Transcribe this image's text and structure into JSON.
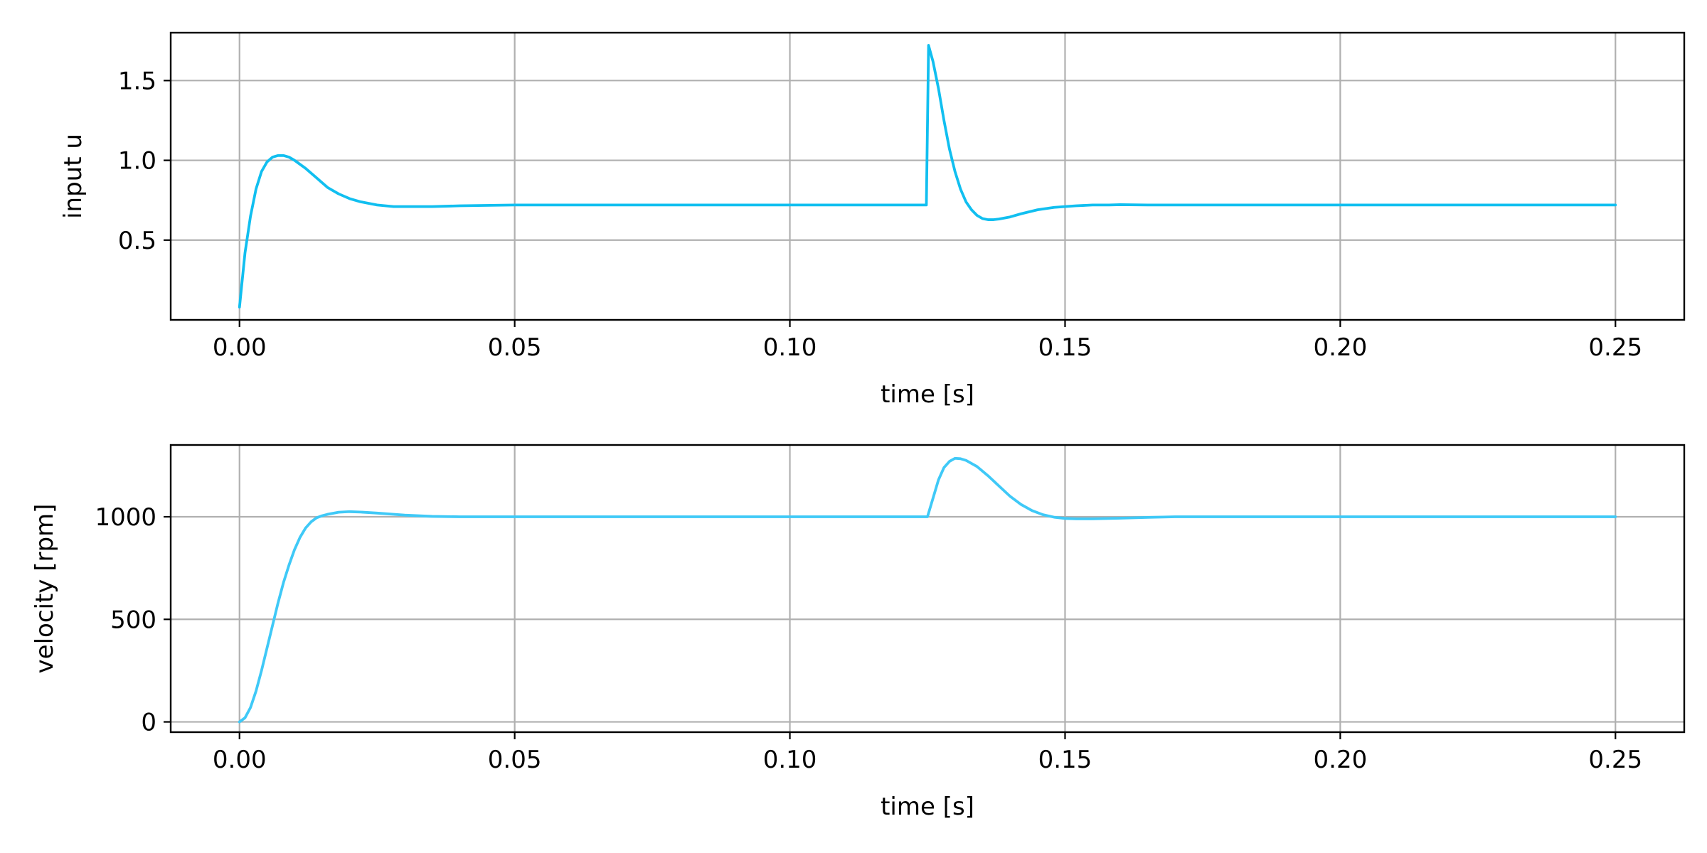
{
  "chart_data": [
    {
      "type": "line",
      "title": "",
      "xlabel": "time [s]",
      "ylabel": "input u",
      "xlim": [
        -0.0125,
        0.2625
      ],
      "ylim": [
        0.0,
        1.8
      ],
      "xticks": [
        0.0,
        0.05,
        0.1,
        0.15,
        0.2,
        0.25
      ],
      "xtick_labels": [
        "0.00",
        "0.05",
        "0.10",
        "0.15",
        "0.20",
        "0.25"
      ],
      "yticks": [
        0.5,
        1.0,
        1.5
      ],
      "ytick_labels": [
        "0.5",
        "1.0",
        "1.5"
      ],
      "grid": true,
      "color": "#11bff0",
      "series": [
        {
          "x": [
            0.0,
            0.001,
            0.002,
            0.003,
            0.004,
            0.005,
            0.006,
            0.007,
            0.008,
            0.009,
            0.01,
            0.012,
            0.014,
            0.016,
            0.018,
            0.02,
            0.022,
            0.025,
            0.028,
            0.03,
            0.035,
            0.04,
            0.05,
            0.06,
            0.08,
            0.1,
            0.12,
            0.1248,
            0.1252,
            0.126,
            0.127,
            0.128,
            0.129,
            0.13,
            0.131,
            0.132,
            0.133,
            0.134,
            0.135,
            0.136,
            0.137,
            0.138,
            0.14,
            0.142,
            0.145,
            0.148,
            0.15,
            0.152,
            0.155,
            0.158,
            0.16,
            0.165,
            0.17,
            0.18,
            0.2,
            0.22,
            0.25
          ],
          "y": [
            0.08,
            0.42,
            0.65,
            0.82,
            0.93,
            0.99,
            1.02,
            1.03,
            1.03,
            1.02,
            1.0,
            0.95,
            0.89,
            0.83,
            0.79,
            0.76,
            0.74,
            0.72,
            0.71,
            0.71,
            0.71,
            0.715,
            0.72,
            0.72,
            0.72,
            0.72,
            0.72,
            0.72,
            1.72,
            1.62,
            1.45,
            1.25,
            1.07,
            0.93,
            0.82,
            0.74,
            0.69,
            0.655,
            0.635,
            0.628,
            0.628,
            0.632,
            0.645,
            0.665,
            0.69,
            0.705,
            0.71,
            0.715,
            0.72,
            0.72,
            0.722,
            0.72,
            0.72,
            0.72,
            0.72,
            0.72,
            0.72
          ]
        }
      ]
    },
    {
      "type": "line",
      "title": "",
      "xlabel": "time [s]",
      "ylabel": "velocity [rpm]",
      "xlim": [
        -0.0125,
        0.2625
      ],
      "ylim": [
        -50,
        1350
      ],
      "xticks": [
        0.0,
        0.05,
        0.1,
        0.15,
        0.2,
        0.25
      ],
      "xtick_labels": [
        "0.00",
        "0.05",
        "0.10",
        "0.15",
        "0.20",
        "0.25"
      ],
      "yticks": [
        0,
        500,
        1000
      ],
      "ytick_labels": [
        "0",
        "500",
        "1000"
      ],
      "grid": true,
      "color": "#3fc9f7",
      "series": [
        {
          "x": [
            0.0,
            0.001,
            0.002,
            0.003,
            0.004,
            0.005,
            0.006,
            0.007,
            0.008,
            0.009,
            0.01,
            0.011,
            0.012,
            0.013,
            0.014,
            0.015,
            0.016,
            0.018,
            0.02,
            0.022,
            0.025,
            0.028,
            0.03,
            0.035,
            0.04,
            0.05,
            0.06,
            0.08,
            0.1,
            0.12,
            0.125,
            0.126,
            0.127,
            0.128,
            0.129,
            0.13,
            0.131,
            0.132,
            0.134,
            0.136,
            0.138,
            0.14,
            0.142,
            0.144,
            0.146,
            0.148,
            0.15,
            0.152,
            0.155,
            0.16,
            0.165,
            0.17,
            0.18,
            0.2,
            0.22,
            0.25
          ],
          "y": [
            0,
            20,
            70,
            150,
            250,
            360,
            470,
            580,
            680,
            765,
            840,
            900,
            945,
            975,
            995,
            1005,
            1012,
            1022,
            1025,
            1023,
            1018,
            1012,
            1008,
            1002,
            1000,
            1000,
            1000,
            1000,
            1000,
            1000,
            1000,
            1090,
            1180,
            1240,
            1270,
            1285,
            1283,
            1275,
            1245,
            1200,
            1150,
            1100,
            1060,
            1030,
            1010,
            998,
            992,
            990,
            990,
            993,
            997,
            1000,
            1000,
            1000,
            1000,
            1000
          ]
        }
      ]
    }
  ]
}
